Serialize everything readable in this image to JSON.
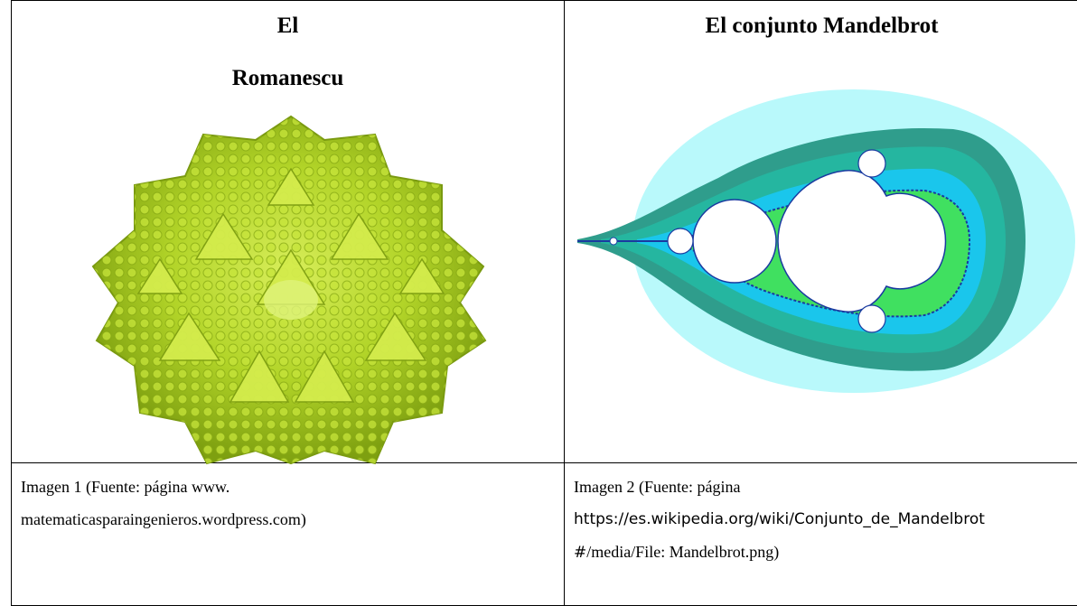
{
  "left": {
    "heading_line1": "El",
    "heading_line2": "Romanescu",
    "figure_icon": "romanesco-broccoli-photo",
    "figure_color": "#a8d01a",
    "caption_line1": "Imagen 1 (Fuente: página www.",
    "caption_line2": "matematicasparaingenieros.wordpress.com)"
  },
  "right": {
    "heading": "El conjunto Mandelbrot",
    "figure_icon": "mandelbrot-set-fractal",
    "figure_colors": [
      "#b9f9fb",
      "#2f9d8c",
      "#25b6a0",
      "#1ac6ec",
      "#40e060",
      "#1a3aa0"
    ],
    "caption_line1": "Imagen 2 (Fuente: página",
    "caption_line2": "https://es.wikipedia.org/wiki/Conjunto_de_Mandelbrot",
    "caption_line3_a": "#",
    "caption_line3_b": "/media/File: Mandelbrot.png)"
  }
}
